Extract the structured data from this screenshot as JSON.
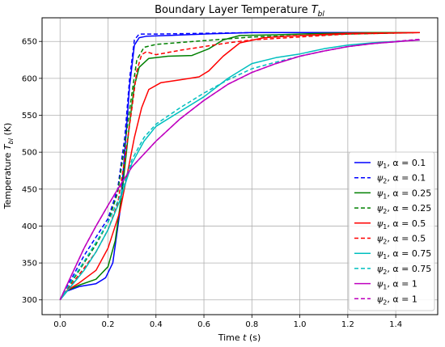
{
  "chart_data": {
    "type": "line",
    "title": "Boundary Layer Temperature",
    "title_symbol": "T",
    "title_subscript": "bl",
    "xlabel": "Time",
    "xlabel_symbol": "t",
    "xlabel_unit": "(s)",
    "ylabel": "Temperature",
    "ylabel_symbol": "T",
    "ylabel_subscript": "bl",
    "ylabel_unit": "(K)",
    "xlim": [
      -0.075,
      1.575
    ],
    "ylim": [
      280,
      682
    ],
    "xticks": [
      0.0,
      0.2,
      0.4,
      0.6,
      0.8,
      1.0,
      1.2,
      1.4
    ],
    "xtick_labels": [
      "0.0",
      "0.2",
      "0.4",
      "0.6",
      "0.8",
      "1.0",
      "1.2",
      "1.4"
    ],
    "yticks": [
      300,
      350,
      400,
      450,
      500,
      550,
      600,
      650
    ],
    "ytick_labels": [
      "300",
      "350",
      "400",
      "450",
      "500",
      "550",
      "600",
      "650"
    ],
    "grid": true,
    "legend_position": "lower-right",
    "series": [
      {
        "name": "ψ1, α = 0.1",
        "psi": "ψ",
        "psi_sub": "1",
        "alpha_label": "α = 0.1",
        "color": "#0000ff",
        "dash": "solid",
        "points": [
          [
            0,
            300
          ],
          [
            0.03,
            312
          ],
          [
            0.08,
            318
          ],
          [
            0.15,
            322
          ],
          [
            0.19,
            330
          ],
          [
            0.22,
            350
          ],
          [
            0.25,
            420
          ],
          [
            0.27,
            500
          ],
          [
            0.29,
            590
          ],
          [
            0.31,
            645
          ],
          [
            0.33,
            655
          ],
          [
            0.36,
            657
          ],
          [
            0.45,
            658
          ],
          [
            0.6,
            660
          ],
          [
            0.8,
            662
          ],
          [
            1.0,
            662
          ],
          [
            1.2,
            662
          ],
          [
            1.5,
            662
          ]
        ]
      },
      {
        "name": "ψ2, α = 0.1",
        "psi": "ψ",
        "psi_sub": "2",
        "alpha_label": "α = 0.1",
        "color": "#0000ff",
        "dash": "dashed",
        "points": [
          [
            0,
            300
          ],
          [
            0.05,
            330
          ],
          [
            0.1,
            360
          ],
          [
            0.15,
            385
          ],
          [
            0.2,
            410
          ],
          [
            0.24,
            450
          ],
          [
            0.27,
            520
          ],
          [
            0.29,
            600
          ],
          [
            0.31,
            652
          ],
          [
            0.33,
            660
          ],
          [
            0.4,
            660
          ],
          [
            0.6,
            661
          ],
          [
            0.8,
            662
          ],
          [
            1.0,
            662
          ],
          [
            1.2,
            662
          ],
          [
            1.5,
            662
          ]
        ]
      },
      {
        "name": "ψ1, α = 0.25",
        "psi": "ψ",
        "psi_sub": "1",
        "alpha_label": "α = 0.25",
        "color": "#008000",
        "dash": "solid",
        "points": [
          [
            0,
            300
          ],
          [
            0.03,
            313
          ],
          [
            0.08,
            320
          ],
          [
            0.15,
            328
          ],
          [
            0.2,
            345
          ],
          [
            0.23,
            380
          ],
          [
            0.26,
            450
          ],
          [
            0.29,
            540
          ],
          [
            0.31,
            590
          ],
          [
            0.33,
            615
          ],
          [
            0.37,
            627
          ],
          [
            0.45,
            630
          ],
          [
            0.55,
            631
          ],
          [
            0.62,
            640
          ],
          [
            0.68,
            652
          ],
          [
            0.75,
            658
          ],
          [
            0.9,
            659
          ],
          [
            1.1,
            661
          ],
          [
            1.3,
            662
          ],
          [
            1.5,
            662
          ]
        ]
      },
      {
        "name": "ψ2, α = 0.25",
        "psi": "ψ",
        "psi_sub": "2",
        "alpha_label": "α = 0.25",
        "color": "#008000",
        "dash": "dashed",
        "points": [
          [
            0,
            300
          ],
          [
            0.05,
            325
          ],
          [
            0.1,
            350
          ],
          [
            0.15,
            375
          ],
          [
            0.2,
            405
          ],
          [
            0.24,
            445
          ],
          [
            0.27,
            510
          ],
          [
            0.3,
            580
          ],
          [
            0.32,
            625
          ],
          [
            0.35,
            642
          ],
          [
            0.4,
            646
          ],
          [
            0.6,
            651
          ],
          [
            0.8,
            656
          ],
          [
            1.0,
            658
          ],
          [
            1.2,
            660
          ],
          [
            1.5,
            662
          ]
        ]
      },
      {
        "name": "ψ1, α = 0.5",
        "psi": "ψ",
        "psi_sub": "1",
        "alpha_label": "α = 0.5",
        "color": "#ff0000",
        "dash": "solid",
        "points": [
          [
            0,
            300
          ],
          [
            0.03,
            313
          ],
          [
            0.08,
            323
          ],
          [
            0.15,
            340
          ],
          [
            0.2,
            370
          ],
          [
            0.25,
            420
          ],
          [
            0.28,
            470
          ],
          [
            0.31,
            520
          ],
          [
            0.34,
            560
          ],
          [
            0.37,
            585
          ],
          [
            0.42,
            594
          ],
          [
            0.5,
            598
          ],
          [
            0.58,
            602
          ],
          [
            0.62,
            610
          ],
          [
            0.68,
            630
          ],
          [
            0.75,
            648
          ],
          [
            0.85,
            655
          ],
          [
            1.0,
            658
          ],
          [
            1.2,
            661
          ],
          [
            1.5,
            662
          ]
        ]
      },
      {
        "name": "ψ2, α = 0.5",
        "psi": "ψ",
        "psi_sub": "2",
        "alpha_label": "α = 0.5",
        "color": "#ff0000",
        "dash": "dashed",
        "points": [
          [
            0,
            300
          ],
          [
            0.05,
            322
          ],
          [
            0.1,
            343
          ],
          [
            0.15,
            365
          ],
          [
            0.2,
            395
          ],
          [
            0.24,
            430
          ],
          [
            0.27,
            490
          ],
          [
            0.3,
            560
          ],
          [
            0.32,
            610
          ],
          [
            0.34,
            632
          ],
          [
            0.36,
            636
          ],
          [
            0.4,
            632
          ],
          [
            0.5,
            638
          ],
          [
            0.6,
            643
          ],
          [
            0.7,
            648
          ],
          [
            0.8,
            652
          ],
          [
            1.0,
            656
          ],
          [
            1.2,
            660
          ],
          [
            1.5,
            662
          ]
        ]
      },
      {
        "name": "ψ1, α = 0.75",
        "psi": "ψ",
        "psi_sub": "1",
        "alpha_label": "α = 0.75",
        "color": "#00bfbf",
        "dash": "solid",
        "points": [
          [
            0,
            300
          ],
          [
            0.05,
            320
          ],
          [
            0.1,
            340
          ],
          [
            0.15,
            365
          ],
          [
            0.2,
            395
          ],
          [
            0.25,
            435
          ],
          [
            0.3,
            485
          ],
          [
            0.35,
            515
          ],
          [
            0.4,
            535
          ],
          [
            0.5,
            555
          ],
          [
            0.6,
            575
          ],
          [
            0.7,
            600
          ],
          [
            0.8,
            620
          ],
          [
            0.9,
            628
          ],
          [
            1.0,
            633
          ],
          [
            1.1,
            640
          ],
          [
            1.2,
            645
          ],
          [
            1.3,
            648
          ],
          [
            1.5,
            652
          ]
        ]
      },
      {
        "name": "ψ2, α = 0.75",
        "psi": "ψ",
        "psi_sub": "2",
        "alpha_label": "α = 0.75",
        "color": "#00bfbf",
        "dash": "dashed",
        "points": [
          [
            0,
            300
          ],
          [
            0.05,
            327
          ],
          [
            0.1,
            352
          ],
          [
            0.15,
            378
          ],
          [
            0.2,
            405
          ],
          [
            0.25,
            440
          ],
          [
            0.3,
            490
          ],
          [
            0.35,
            520
          ],
          [
            0.4,
            538
          ],
          [
            0.5,
            560
          ],
          [
            0.6,
            580
          ],
          [
            0.7,
            598
          ],
          [
            0.8,
            613
          ],
          [
            0.9,
            622
          ],
          [
            1.0,
            630
          ],
          [
            1.1,
            637
          ],
          [
            1.2,
            643
          ],
          [
            1.3,
            647
          ],
          [
            1.5,
            652
          ]
        ]
      },
      {
        "name": "ψ1, α = 1",
        "psi": "ψ",
        "psi_sub": "1",
        "alpha_label": "α = 1",
        "color": "#bf00bf",
        "dash": "solid",
        "points": [
          [
            0,
            300
          ],
          [
            0.05,
            335
          ],
          [
            0.1,
            370
          ],
          [
            0.15,
            400
          ],
          [
            0.2,
            428
          ],
          [
            0.25,
            455
          ],
          [
            0.3,
            480
          ],
          [
            0.4,
            515
          ],
          [
            0.5,
            545
          ],
          [
            0.6,
            570
          ],
          [
            0.7,
            592
          ],
          [
            0.8,
            608
          ],
          [
            0.9,
            620
          ],
          [
            1.0,
            630
          ],
          [
            1.1,
            637
          ],
          [
            1.2,
            643
          ],
          [
            1.3,
            647
          ],
          [
            1.5,
            652
          ]
        ]
      },
      {
        "name": "ψ2, α = 1",
        "psi": "ψ",
        "psi_sub": "2",
        "alpha_label": "α = 1",
        "color": "#bf00bf",
        "dash": "dashed",
        "points": [
          [
            0,
            300
          ],
          [
            0.05,
            335
          ],
          [
            0.1,
            370
          ],
          [
            0.15,
            400
          ],
          [
            0.2,
            428
          ],
          [
            0.25,
            455
          ],
          [
            0.3,
            480
          ],
          [
            0.4,
            515
          ],
          [
            0.5,
            545
          ],
          [
            0.6,
            570
          ],
          [
            0.7,
            592
          ],
          [
            0.8,
            608
          ],
          [
            0.9,
            620
          ],
          [
            1.0,
            630
          ],
          [
            1.1,
            637
          ],
          [
            1.2,
            643
          ],
          [
            1.3,
            647
          ],
          [
            1.5,
            653
          ]
        ]
      }
    ]
  }
}
